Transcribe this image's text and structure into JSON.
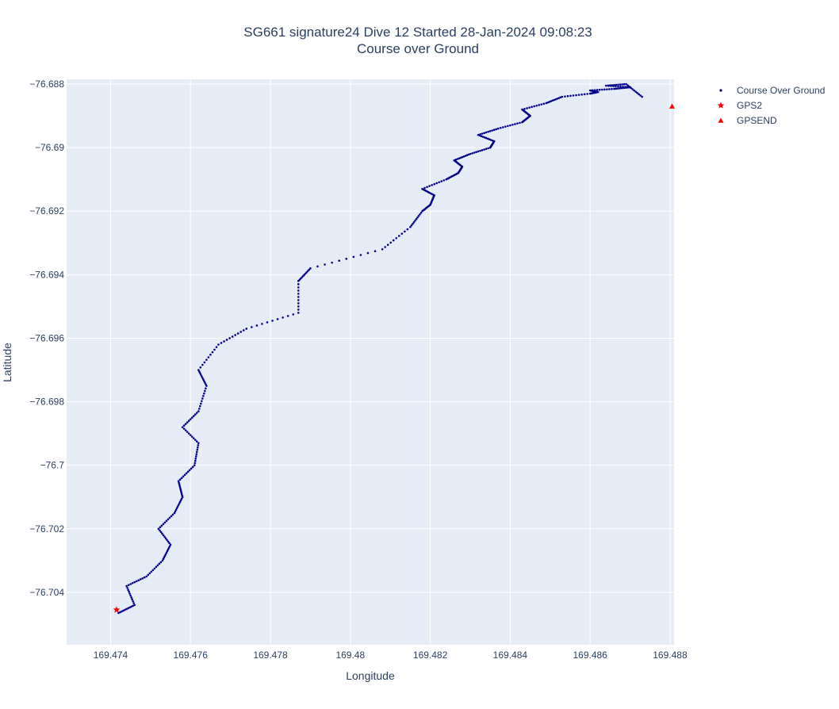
{
  "chart_data": {
    "type": "scatter",
    "title": "SG661 signature24 Dive 12 Started 28-Jan-2024 09:08:23",
    "subtitle": "Course over Ground",
    "xlabel": "Longitude",
    "ylabel": "Latitude",
    "xlim": [
      169.4729,
      169.4881
    ],
    "ylim": [
      -76.70565,
      -76.68785
    ],
    "x_ticks": [
      "169.474",
      "169.476",
      "169.478",
      "169.48",
      "169.482",
      "169.484",
      "169.486",
      "169.488"
    ],
    "y_ticks": [
      "−76.688",
      "−76.69",
      "−76.692",
      "−76.694",
      "−76.696",
      "−76.698",
      "−76.7",
      "−76.702",
      "−76.704"
    ],
    "x_tick_values": [
      169.474,
      169.476,
      169.478,
      169.48,
      169.482,
      169.484,
      169.486,
      169.488
    ],
    "y_tick_values": [
      -76.688,
      -76.69,
      -76.692,
      -76.694,
      -76.696,
      -76.698,
      -76.7,
      -76.702,
      -76.704
    ],
    "grid": true,
    "legend_position": "top-right",
    "series": [
      {
        "name": "Course Over Ground",
        "marker": "dot",
        "color": "#00008b",
        "x": [
          169.4742,
          169.4746,
          169.4744,
          169.4749,
          169.4753,
          169.4755,
          169.4752,
          169.4756,
          169.4758,
          169.4757,
          169.4761,
          169.4762,
          169.4758,
          169.4762,
          169.4764,
          169.4762,
          169.4767,
          169.4774,
          169.4787,
          169.4787,
          169.479,
          169.4808,
          169.4815,
          169.4818,
          169.482,
          169.4821,
          169.4818,
          169.4824,
          169.4827,
          169.4828,
          169.4826,
          169.483,
          169.4835,
          169.4836,
          169.4832,
          169.4837,
          169.4843,
          169.4845,
          169.4843,
          169.4849,
          169.4853,
          169.486,
          169.4862,
          169.486,
          169.4866,
          169.487,
          169.4864,
          169.4869,
          169.4873
        ],
        "y": [
          -76.70465,
          -76.7044,
          -76.7038,
          -76.7035,
          -76.703,
          -76.7025,
          -76.702,
          -76.7015,
          -76.701,
          -76.7005,
          -76.7,
          -76.6993,
          -76.6988,
          -76.6983,
          -76.6975,
          -76.697,
          -76.6962,
          -76.6957,
          -76.6952,
          -76.6942,
          -76.6938,
          -76.6932,
          -76.6925,
          -76.692,
          -76.6918,
          -76.6915,
          -76.6913,
          -76.691,
          -76.6908,
          -76.6906,
          -76.6904,
          -76.6902,
          -76.69,
          -76.6898,
          -76.6896,
          -76.6894,
          -76.6892,
          -76.689,
          -76.6888,
          -76.6886,
          -76.6884,
          -76.6883,
          -76.68825,
          -76.6882,
          -76.68815,
          -76.6881,
          -76.68805,
          -76.688,
          -76.6884
        ]
      },
      {
        "name": "GPS2",
        "marker": "star",
        "color": "#ff0000",
        "x": [
          169.47415
        ],
        "y": [
          -76.70455
        ]
      },
      {
        "name": "GPSEND",
        "marker": "triangle-up",
        "color": "#ff0000",
        "x": [
          169.48805
        ],
        "y": [
          -76.6887
        ]
      }
    ]
  },
  "colors": {
    "plot_bg": "#e5ecf6",
    "grid": "#ffffff",
    "text": "#2a3f5f",
    "course": "#00008b",
    "gps": "#ff0000"
  }
}
